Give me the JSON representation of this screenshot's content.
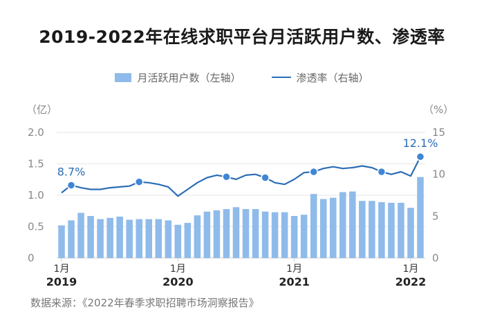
{
  "chart_data": {
    "type": "bar+line",
    "title": "2019-2022年在线求职平台月活跃用户数、渗透率",
    "y_left_unit": "（亿）",
    "y_right_unit": "（%）",
    "y_left_ticks": [
      "0",
      "0.5",
      "1.0",
      "1.5",
      "2.0"
    ],
    "y_right_ticks": [
      "0",
      "5",
      "10",
      "15"
    ],
    "ylim_left": [
      0,
      2.0
    ],
    "ylim_right": [
      0,
      15
    ],
    "x_ticks": [
      {
        "index": 0,
        "month": "1月",
        "year": "2019"
      },
      {
        "index": 12,
        "month": "1月",
        "year": "2020"
      },
      {
        "index": 24,
        "month": "1月",
        "year": "2021"
      },
      {
        "index": 36,
        "month": "1月",
        "year": "2022"
      }
    ],
    "series": [
      {
        "name": "月活跃用户数（左轴）",
        "type": "bar",
        "axis": "left",
        "values": [
          0.52,
          0.6,
          0.72,
          0.67,
          0.62,
          0.64,
          0.66,
          0.61,
          0.62,
          0.62,
          0.62,
          0.6,
          0.53,
          0.56,
          0.68,
          0.74,
          0.76,
          0.78,
          0.81,
          0.78,
          0.78,
          0.74,
          0.73,
          0.73,
          0.67,
          0.69,
          1.02,
          0.94,
          0.96,
          1.05,
          1.06,
          0.91,
          0.91,
          0.89,
          0.88,
          0.88,
          0.8,
          1.29
        ]
      },
      {
        "name": "渗透率（右轴）",
        "type": "line",
        "axis": "right",
        "values": [
          7.8,
          8.7,
          8.4,
          8.2,
          8.2,
          8.4,
          8.5,
          8.6,
          9.1,
          9.0,
          8.8,
          8.5,
          7.4,
          8.2,
          9.0,
          9.6,
          9.9,
          9.7,
          9.4,
          9.9,
          10.0,
          9.6,
          9.0,
          8.8,
          9.4,
          10.2,
          10.3,
          10.7,
          10.9,
          10.7,
          10.8,
          11.0,
          10.8,
          10.3,
          10.0,
          10.3,
          9.8,
          12.1
        ],
        "markers": [
          1,
          8,
          17,
          21,
          26,
          33,
          37
        ]
      }
    ],
    "data_labels": [
      {
        "series": 1,
        "index": 1,
        "text": "8.7%"
      },
      {
        "series": 1,
        "index": 37,
        "text": "12.1%"
      }
    ]
  },
  "source": "数据来源：《2022年春季求职招聘市场洞察报告》",
  "colors": {
    "bar": "#8fbbea",
    "line": "#2a6db5",
    "grid": "#e6e6e6",
    "axis_text": "#888888",
    "label": "#2a6db5"
  }
}
